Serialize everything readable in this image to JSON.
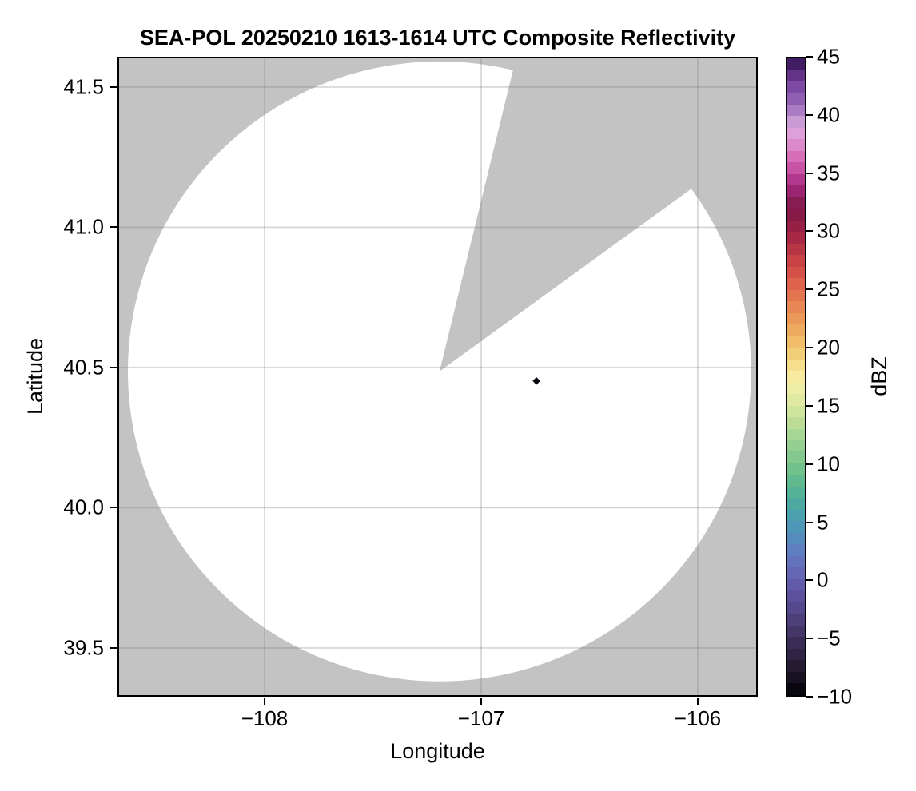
{
  "figure": {
    "title": "SEA-POL 20250210 1613-1614 UTC Composite Reflectivity"
  },
  "chart_data": {
    "type": "heatmap",
    "subtype": "radar-composite-reflectivity-ppi",
    "title": "SEA-POL 20250210 1613-1614 UTC Composite Reflectivity",
    "xlabel": "Longitude",
    "ylabel": "Latitude",
    "xlim": [
      -108.679,
      -105.723
    ],
    "ylim": [
      39.326,
      41.608
    ],
    "x_ticks": [
      -108,
      -107,
      -106
    ],
    "x_tick_labels": [
      "−108",
      "−107",
      "−106"
    ],
    "y_ticks": [
      41.5,
      41.0,
      40.5,
      40.0,
      39.5
    ],
    "y_tick_labels": [
      "41.5",
      "41.0",
      "40.5",
      "40.0",
      "39.5"
    ],
    "grid": true,
    "legend_position": "none",
    "colorbar": {
      "label": "dBZ",
      "min": -10,
      "max": 45,
      "band_step_dbz": 1,
      "ticks": [
        45,
        40,
        35,
        30,
        25,
        20,
        15,
        10,
        5,
        0,
        -5,
        -10
      ],
      "tick_labels": [
        "45",
        "40",
        "35",
        "30",
        "25",
        "20",
        "15",
        "10",
        "5",
        "0",
        "−5",
        "−10"
      ],
      "colormap_anchors": [
        [
          -10,
          "#020008"
        ],
        [
          -8,
          "#1e1629"
        ],
        [
          -5,
          "#3f315e"
        ],
        [
          -2,
          "#5a4c96"
        ],
        [
          0,
          "#6560b0"
        ],
        [
          2,
          "#6278bf"
        ],
        [
          4,
          "#5291bd"
        ],
        [
          5,
          "#4b9cb4"
        ],
        [
          7,
          "#4daf9b"
        ],
        [
          9,
          "#68bd8b"
        ],
        [
          11,
          "#8bcb90"
        ],
        [
          13,
          "#b2d996"
        ],
        [
          15,
          "#d8e79e"
        ],
        [
          17,
          "#f4efa9"
        ],
        [
          18,
          "#f7e795"
        ],
        [
          20,
          "#f2c66f"
        ],
        [
          22,
          "#eda25a"
        ],
        [
          25,
          "#e16c4e"
        ],
        [
          27,
          "#d04846"
        ],
        [
          30,
          "#9f2145"
        ],
        [
          32,
          "#7c1747"
        ],
        [
          34,
          "#a62a80"
        ],
        [
          36,
          "#d160ae"
        ],
        [
          38,
          "#e096d2"
        ],
        [
          39,
          "#d9aade"
        ],
        [
          41,
          "#9a6cba"
        ],
        [
          43,
          "#733f9b"
        ],
        [
          45,
          "#32104f"
        ]
      ]
    },
    "radar": {
      "center_lon": -107.192,
      "center_lat": 40.486,
      "coverage_radius_lon_deg": 1.439,
      "coverage_radius_lat_deg": 1.105,
      "approx_range_km": 122
    },
    "no_data_sector": {
      "azimuth_from_deg": 14,
      "azimuth_to_deg": 54,
      "polygon_lonlat": [
        [
          -107.192,
          40.486
        ],
        [
          -106.838,
          41.608
        ],
        [
          -105.723,
          41.608
        ],
        [
          -105.723,
          41.309
        ]
      ]
    },
    "data_points": [
      {
        "lon": -106.745,
        "lat": 40.452,
        "value_dbz": -10,
        "marker": "diamond",
        "color": "#08060e"
      }
    ],
    "colors": {
      "no_coverage_bg": "#c3c3c3",
      "coverage_fill": "#ffffff",
      "grid_line": "rgba(120,120,120,0.32)",
      "frame": "#000000",
      "text": "#000000"
    }
  }
}
